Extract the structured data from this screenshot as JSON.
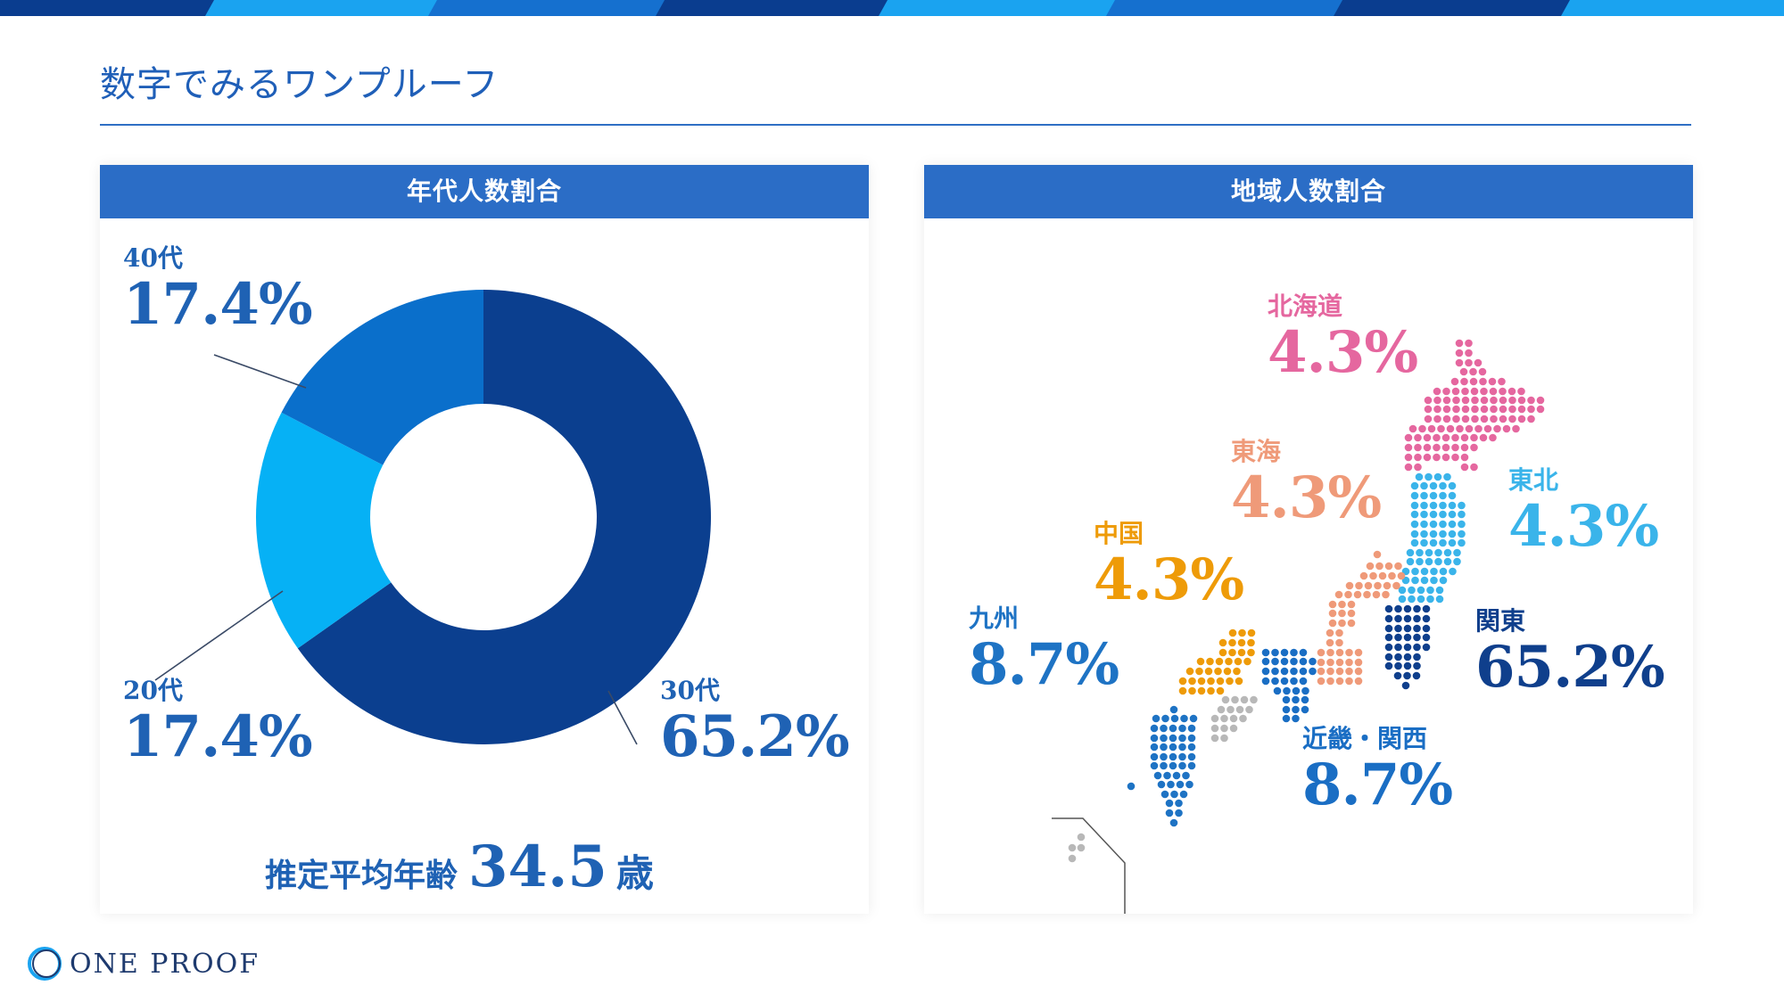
{
  "page_title": "数字でみるワンプルーフ",
  "logo_text": "ONE PROOF",
  "colors": {
    "primary": "#2b6dc6",
    "stripe_dark": "#0a3d8f",
    "stripe_mid": "#1570cf",
    "stripe_light": "#1aa3f0"
  },
  "age_panel": {
    "header": "年代人数割合",
    "avg_label": "推定平均年齢",
    "avg_value": "34.5",
    "avg_unit": "歳"
  },
  "region_panel": {
    "header": "地域人数割合"
  },
  "chart_data": [
    {
      "type": "pie",
      "title": "年代人数割合",
      "donut": true,
      "slices": [
        {
          "label": "30代",
          "value": 65.2,
          "display": "65.2%",
          "color": "#0b3f8f"
        },
        {
          "label": "20代",
          "value": 17.4,
          "display": "17.4%",
          "color": "#06b1f5"
        },
        {
          "label": "40代",
          "value": 17.4,
          "display": "17.4%",
          "color": "#0a6fcb"
        }
      ]
    },
    {
      "type": "map",
      "title": "地域人数割合",
      "regions": [
        {
          "label": "北海道",
          "value": 4.3,
          "display": "4.3%",
          "color": "#e5679f"
        },
        {
          "label": "東北",
          "value": 4.3,
          "display": "4.3%",
          "color": "#3ab4ea"
        },
        {
          "label": "関東",
          "value": 65.2,
          "display": "65.2%",
          "color": "#0f3f8c"
        },
        {
          "label": "東海",
          "value": 4.3,
          "display": "4.3%",
          "color": "#ef9a79"
        },
        {
          "label": "中国",
          "value": 4.3,
          "display": "4.3%",
          "color": "#ee9b08"
        },
        {
          "label": "近畿・関西",
          "value": 8.7,
          "display": "8.7%",
          "color": "#1a6ec4"
        },
        {
          "label": "九州",
          "value": 8.7,
          "display": "8.7%",
          "color": "#1e73c4"
        },
        {
          "label": "四国",
          "value": null,
          "display": "",
          "color": "#b8b8b8"
        }
      ]
    }
  ]
}
